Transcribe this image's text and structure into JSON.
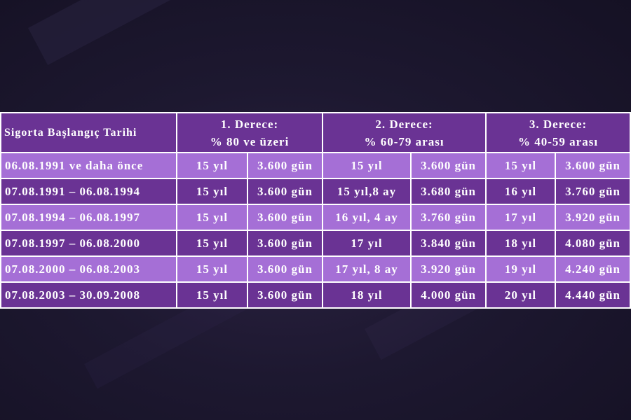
{
  "table": {
    "header": {
      "start_date_label": "Sigorta Başlangıç Tarihi",
      "groups": [
        {
          "title": "1. Derece:",
          "subtitle": "% 80 ve üzeri"
        },
        {
          "title": "2. Derece:",
          "subtitle": "% 60-79 arası"
        },
        {
          "title": "3. Derece:",
          "subtitle": "% 40-59 arası"
        }
      ]
    },
    "rows": [
      {
        "date": "06.08.1991 ve daha önce",
        "cells": [
          "15 yıl",
          "3.600 gün",
          "15 yıl",
          "3.600 gün",
          "15 yıl",
          "3.600 gün"
        ]
      },
      {
        "date": "07.08.1991 – 06.08.1994",
        "cells": [
          "15 yıl",
          "3.600 gün",
          "15 yıl,8 ay",
          "3.680 gün",
          "16 yıl",
          "3.760 gün"
        ]
      },
      {
        "date": "07.08.1994 – 06.08.1997",
        "cells": [
          "15 yıl",
          "3.600 gün",
          "16 yıl, 4 ay",
          "3.760 gün",
          "17 yıl",
          "3.920 gün"
        ]
      },
      {
        "date": "07.08.1997 – 06.08.2000",
        "cells": [
          "15 yıl",
          "3.600 gün",
          "17 yıl",
          "3.840 gün",
          "18 yıl",
          "4.080 gün"
        ]
      },
      {
        "date": "07.08.2000 – 06.08.2003",
        "cells": [
          "15 yıl",
          "3.600 gün",
          "17 yıl, 8 ay",
          "3.920 gün",
          "19 yıl",
          "4.240 gün"
        ]
      },
      {
        "date": "07.08.2003 – 30.09.2008",
        "cells": [
          "15 yıl",
          "3.600 gün",
          "18 yıl",
          "4.000 gün",
          "20 yıl",
          "4.440 gün"
        ]
      }
    ]
  },
  "colors": {
    "dark_cell": "#6a3394",
    "light_cell": "#a56fd6",
    "background": "#1d1830"
  }
}
